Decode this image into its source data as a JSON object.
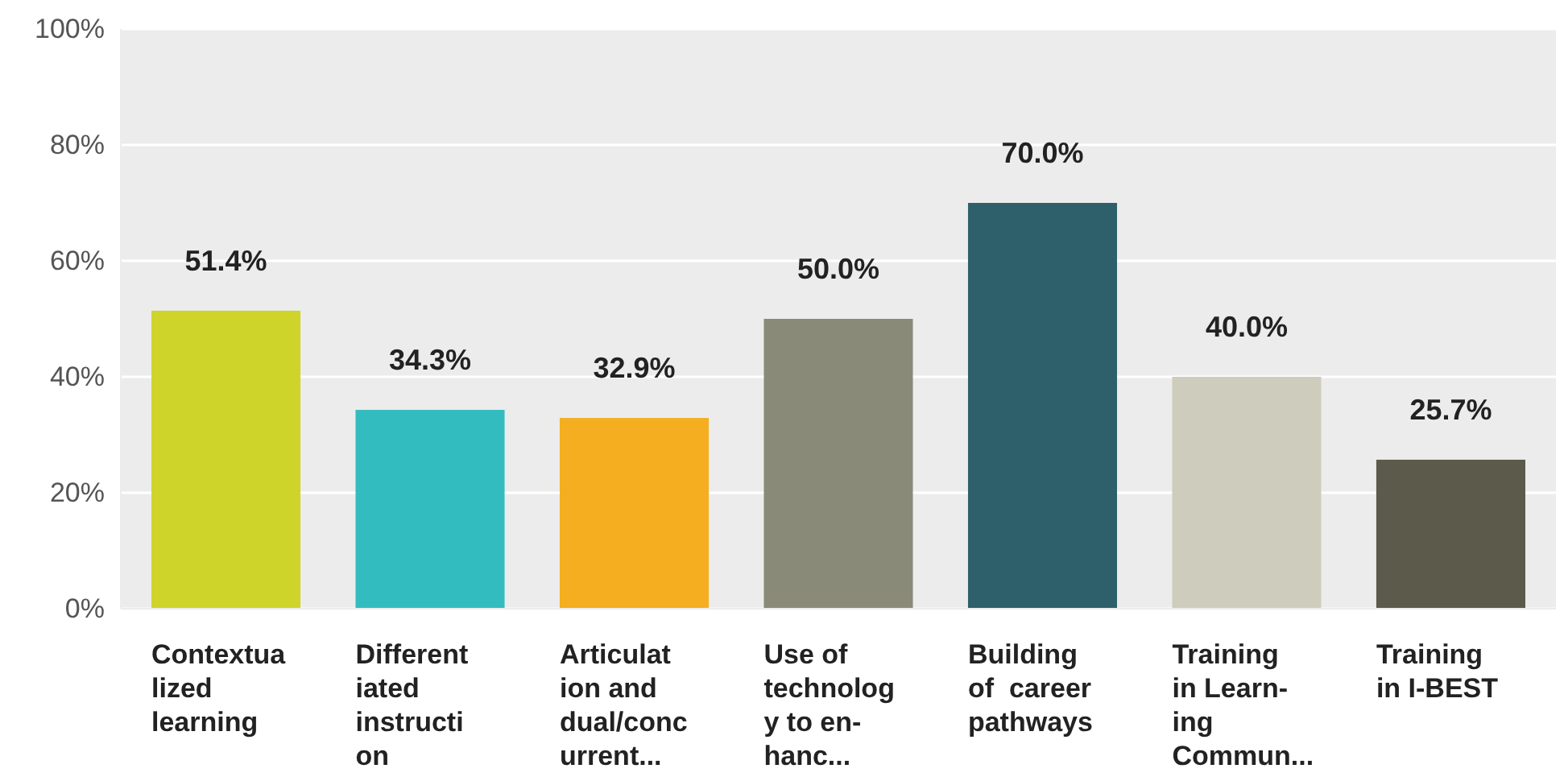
{
  "chart_data": {
    "type": "bar",
    "categories": [
      "Contextua\nlized\nlearning",
      "Different\niated\ninstructi\non",
      "Articulat\nion and\ndual/conc\nurrent...",
      "Use of\ntechnolog\ny to en-\nhanc...",
      "Building\nof  career\npathways",
      "Training\nin Learn-\ning\nCommun...",
      "Training\nin I-BEST"
    ],
    "values": [
      51.4,
      34.3,
      32.9,
      50.0,
      70.0,
      40.0,
      25.7
    ],
    "value_labels": [
      "51.4%",
      "34.3%",
      "32.9%",
      "50.0%",
      "70.0%",
      "40.0%",
      "25.7%"
    ],
    "colors": [
      "#cfd42a",
      "#33bcbf",
      "#f5ae1f",
      "#8a8a78",
      "#2e606b",
      "#cecdbd",
      "#5c5a4a"
    ],
    "ylim": [
      0,
      100
    ],
    "yticks": [
      {
        "value": 0,
        "label": "0%"
      },
      {
        "value": 20,
        "label": "20%"
      },
      {
        "value": 40,
        "label": "40%"
      },
      {
        "value": 60,
        "label": "60%"
      },
      {
        "value": 80,
        "label": "80%"
      },
      {
        "value": 100,
        "label": "100%"
      }
    ],
    "grid": "y"
  }
}
